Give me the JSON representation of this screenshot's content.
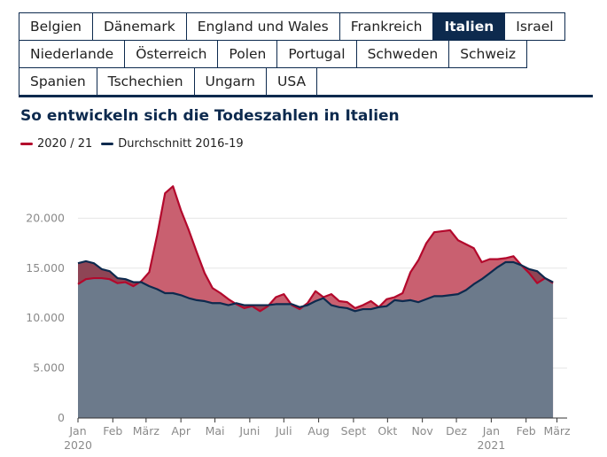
{
  "tabs": [
    [
      "Belgien",
      "Dänemark",
      "England und Wales",
      "Frankreich",
      "Italien",
      "Israel"
    ],
    [
      "Niederlande",
      "Österreich",
      "Polen",
      "Portugal",
      "Schweden",
      "Schweiz"
    ],
    [
      "Spanien",
      "Tschechien",
      "Ungarn",
      "USA"
    ]
  ],
  "active_tab": "Italien",
  "colors": {
    "navy": "#0d2a4e",
    "red": "#b3082c",
    "red_fill": "#c96070",
    "gray_fill": "#6c7a8b",
    "dark_fill": "#8e4555"
  },
  "chart_data": {
    "type": "area",
    "title": "So entwickeln sich die Todeszahlen in Italien",
    "xlabel": "",
    "ylabel": "",
    "ylim": [
      0,
      25000
    ],
    "yticks": [
      0,
      5000,
      10000,
      15000,
      20000
    ],
    "ytick_labels": [
      "0",
      "5.000",
      "10.000",
      "15.000",
      "20.000"
    ],
    "xlim": [
      0,
      61
    ],
    "xticks": [
      {
        "week": 0,
        "label": "Jan",
        "sub": "2020"
      },
      {
        "week": 4.4,
        "label": "Feb",
        "sub": ""
      },
      {
        "week": 8.6,
        "label": "März",
        "sub": ""
      },
      {
        "week": 13,
        "label": "Apr",
        "sub": ""
      },
      {
        "week": 17.3,
        "label": "Mai",
        "sub": ""
      },
      {
        "week": 21.7,
        "label": "Juni",
        "sub": ""
      },
      {
        "week": 26,
        "label": "Juli",
        "sub": ""
      },
      {
        "week": 30.4,
        "label": "Aug",
        "sub": ""
      },
      {
        "week": 34.8,
        "label": "Sept",
        "sub": ""
      },
      {
        "week": 39.1,
        "label": "Okt",
        "sub": ""
      },
      {
        "week": 43.5,
        "label": "Nov",
        "sub": ""
      },
      {
        "week": 47.8,
        "label": "Dez",
        "sub": ""
      },
      {
        "week": 52.2,
        "label": "Jan",
        "sub": "2021"
      },
      {
        "week": 56.6,
        "label": "Feb",
        "sub": ""
      },
      {
        "week": 60.5,
        "label": "März",
        "sub": ""
      }
    ],
    "grid": true,
    "legend_position": "top-left",
    "series": [
      {
        "name": "2020 / 21",
        "color": "#b3082c",
        "values": [
          13400,
          13900,
          14000,
          14000,
          13900,
          13500,
          13600,
          13200,
          13700,
          14600,
          18300,
          22500,
          23200,
          20800,
          18800,
          16600,
          14500,
          13000,
          12500,
          11900,
          11400,
          11000,
          11200,
          10700,
          11200,
          12100,
          12400,
          11300,
          10900,
          11500,
          12700,
          12100,
          12400,
          11700,
          11600,
          11000,
          11300,
          11700,
          11100,
          11900,
          12100,
          12500,
          14600,
          15800,
          17500,
          18600,
          18700,
          18800,
          17800,
          17400,
          17000,
          15600,
          15900,
          15900,
          16000,
          16200,
          15300,
          14500,
          13500,
          14000,
          13500
        ]
      },
      {
        "name": "Durchschnitt 2016-19",
        "color": "#0d2a4e",
        "values": [
          15500,
          15700,
          15500,
          14900,
          14700,
          14000,
          13900,
          13600,
          13600,
          13200,
          12900,
          12500,
          12500,
          12300,
          12000,
          11800,
          11700,
          11500,
          11500,
          11300,
          11500,
          11300,
          11300,
          11300,
          11300,
          11400,
          11400,
          11400,
          11100,
          11300,
          11700,
          12000,
          11300,
          11100,
          11000,
          10700,
          10900,
          10900,
          11100,
          11200,
          11800,
          11700,
          11800,
          11600,
          11900,
          12200,
          12200,
          12300,
          12400,
          12800,
          13400,
          13900,
          14500,
          15100,
          15600,
          15600,
          15300,
          14900,
          14700,
          14000,
          13600
        ]
      }
    ]
  }
}
